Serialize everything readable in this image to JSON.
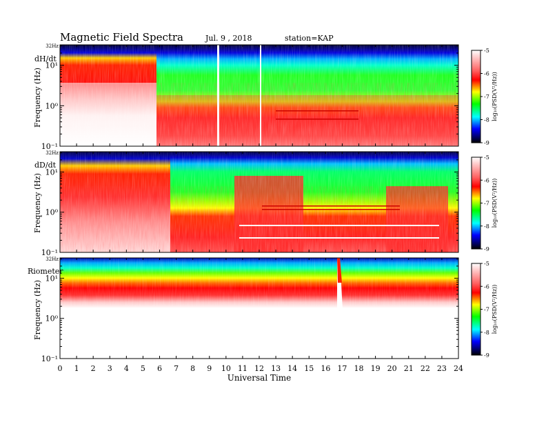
{
  "header": {
    "title": "Magnetic  Field  Spectra",
    "date": "Jul.  9  , 2018",
    "station": "station=KAP"
  },
  "chart_data": [
    {
      "type": "heatmap",
      "panel_label": "dH/dt",
      "ylabel": "Frequency  (Hz)",
      "yscale": "log",
      "ylim": [
        0.1,
        32
      ],
      "y_ticks": [
        "10⁻¹",
        "10⁰",
        "10¹"
      ],
      "y_top_label": "32Hz",
      "xlim": [
        0,
        24
      ],
      "colorbar": {
        "label": "log₁₀(PSD(V²/Hz))",
        "range": [
          -9,
          -5
        ],
        "ticks": [
          "-5",
          "-6",
          "-7",
          "-8",
          "-9"
        ]
      }
    },
    {
      "type": "heatmap",
      "panel_label": "dD/dt",
      "ylabel": "Frequency  (Hz)",
      "yscale": "log",
      "ylim": [
        0.1,
        32
      ],
      "y_ticks": [
        "10⁻¹",
        "10⁰",
        "10¹"
      ],
      "y_top_label": "32Hz",
      "xlim": [
        0,
        24
      ],
      "colorbar": {
        "label": "log₁₀(PSD(V²/Hz))",
        "range": [
          -9,
          -5
        ],
        "ticks": [
          "-5",
          "-6",
          "-7",
          "-8",
          "-9"
        ]
      }
    },
    {
      "type": "heatmap",
      "panel_label": "Riometer",
      "ylabel": "Frequency  (Hz)",
      "yscale": "log",
      "ylim": [
        0.1,
        32
      ],
      "y_ticks": [
        "10⁻¹",
        "10⁰",
        "10¹"
      ],
      "y_top_label": "32Hz",
      "xlim": [
        0,
        24
      ],
      "colorbar": {
        "label": "log₁₀(PSD(V²/Hz))",
        "range": [
          -9,
          -5
        ],
        "ticks": [
          "-5",
          "-6",
          "-7",
          "-8",
          "-9"
        ]
      }
    }
  ],
  "x_axis": {
    "label": "Universal  Time",
    "ticks": [
      "0",
      "1",
      "2",
      "3",
      "4",
      "5",
      "6",
      "7",
      "8",
      "9",
      "10",
      "11",
      "12",
      "13",
      "14",
      "15",
      "16",
      "17",
      "18",
      "19",
      "20",
      "21",
      "22",
      "23",
      "24"
    ]
  },
  "colors": {
    "scale": [
      "#ffffff",
      "#ff0000",
      "#ffff00",
      "#00ff00",
      "#00ffff",
      "#0000ff",
      "#000000"
    ]
  }
}
